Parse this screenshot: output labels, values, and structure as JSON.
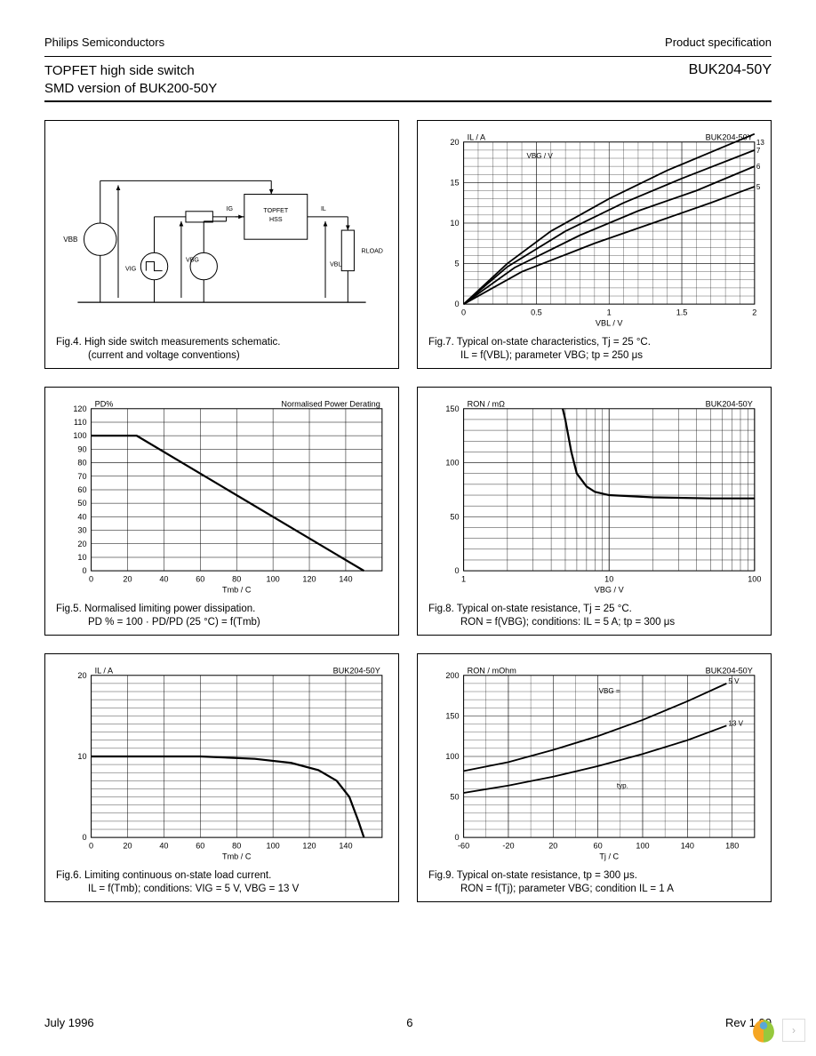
{
  "header": {
    "company": "Philips Semiconductors",
    "spec": "Product specification",
    "title1": "TOPFET high side switch",
    "title2": "SMD version of BUK200-50Y",
    "part": "BUK204-50Y"
  },
  "footer": {
    "date": "July 1996",
    "page": "6",
    "rev": "Rev 1.00"
  },
  "fig4": {
    "caption1": "Fig.4.   High side switch measurements schematic.",
    "caption2": "(current and voltage conventions)",
    "labels": {
      "vbb": "VBB",
      "vig": "VIG",
      "vbg": "VBG",
      "vbl": "VBL",
      "load": "RLOAD",
      "hs": "TOPFET HSS",
      "ig": "IG",
      "il": "IL"
    },
    "colors": {
      "line": "#000000"
    }
  },
  "fig5": {
    "caption1": "Fig.5.   Normalised limiting power dissipation.",
    "caption2": "PD % = 100 · PD/PD (25 °C) = f(Tmb)",
    "title_in": "Normalised Power Derating",
    "ylabel": "PD%",
    "xlabel": "Tmb / C",
    "xlim": [
      0,
      160
    ],
    "ylim": [
      0,
      120
    ],
    "xticks": [
      0,
      20,
      40,
      60,
      80,
      100,
      120,
      140
    ],
    "yticks": [
      0,
      10,
      20,
      30,
      40,
      50,
      60,
      70,
      80,
      90,
      100,
      110,
      120
    ],
    "data": [
      [
        0,
        100
      ],
      [
        25,
        100
      ],
      [
        150,
        0
      ]
    ],
    "grid_color": "#000000",
    "bg": "#ffffff",
    "line_color": "#000000",
    "line_width": 2.2
  },
  "fig6": {
    "caption1": "Fig.6.   Limiting continuous on-state load current.",
    "caption2": "IL = f(Tmb); conditions: VIG = 5 V, VBG = 13 V",
    "ylabel": "IL / A",
    "xlabel": "Tmb / C",
    "part": "BUK204-50Y",
    "xlim": [
      0,
      160
    ],
    "ylim": [
      0,
      20
    ],
    "xticks": [
      0,
      20,
      40,
      60,
      80,
      100,
      120,
      140
    ],
    "yticks": [
      0,
      10,
      20
    ],
    "data": [
      [
        0,
        10
      ],
      [
        60,
        10
      ],
      [
        90,
        9.7
      ],
      [
        110,
        9.2
      ],
      [
        125,
        8.3
      ],
      [
        135,
        7.0
      ],
      [
        142,
        5.0
      ],
      [
        147,
        2.0
      ],
      [
        150,
        0
      ]
    ],
    "grid_color": "#000000",
    "line_color": "#000000",
    "line_width": 2.2
  },
  "fig7": {
    "caption1": "Fig.7.   Typical on-state characteristics, Tj = 25 °C.",
    "caption2": "IL = f(VBL); parameter VBG; tp = 250 μs",
    "ylabel": "IL / A",
    "xlabel": "VBL / V",
    "part": "BUK204-50Y",
    "param_label": "VBG / V",
    "xlim": [
      0,
      2
    ],
    "ylim": [
      0,
      20
    ],
    "xticks": [
      0,
      0.5,
      1,
      1.5,
      2
    ],
    "yticks": [
      0,
      5,
      10,
      15,
      20
    ],
    "series": [
      {
        "label": "13",
        "pts": [
          [
            0,
            0
          ],
          [
            0.3,
            5
          ],
          [
            0.6,
            9
          ],
          [
            1.0,
            13
          ],
          [
            1.4,
            16.5
          ],
          [
            1.8,
            19.5
          ],
          [
            2.0,
            21
          ]
        ]
      },
      {
        "label": "7",
        "pts": [
          [
            0,
            0
          ],
          [
            0.3,
            4.6
          ],
          [
            0.7,
            9
          ],
          [
            1.1,
            12.5
          ],
          [
            1.5,
            15.5
          ],
          [
            2.0,
            19
          ]
        ]
      },
      {
        "label": "6",
        "pts": [
          [
            0,
            0
          ],
          [
            0.35,
            4.5
          ],
          [
            0.8,
            8.5
          ],
          [
            1.2,
            11.5
          ],
          [
            1.6,
            14
          ],
          [
            2.0,
            17
          ]
        ]
      },
      {
        "label": "5",
        "pts": [
          [
            0,
            0
          ],
          [
            0.4,
            4
          ],
          [
            0.9,
            7.5
          ],
          [
            1.3,
            10
          ],
          [
            1.7,
            12.5
          ],
          [
            2.0,
            14.5
          ]
        ]
      }
    ],
    "grid_color": "#000000",
    "line_color": "#000000",
    "line_width": 1.8
  },
  "fig8": {
    "caption1": "Fig.8.   Typical on-state resistance, Tj = 25 °C.",
    "caption2": "RON = f(VBG); conditions: IL = 5 A; tp = 300 μs",
    "ylabel": "RON / mΩ",
    "xlabel": "VBG / V",
    "part": "BUK204-50Y",
    "xlim": [
      1,
      100
    ],
    "ylim": [
      0,
      150
    ],
    "yticks": [
      0,
      50,
      100,
      150
    ],
    "xticks_log": [
      1,
      10,
      100
    ],
    "data": [
      [
        4.8,
        150
      ],
      [
        5,
        140
      ],
      [
        5.5,
        110
      ],
      [
        6,
        90
      ],
      [
        7,
        78
      ],
      [
        8,
        73
      ],
      [
        10,
        70
      ],
      [
        20,
        68
      ],
      [
        50,
        67
      ],
      [
        100,
        67
      ]
    ],
    "grid_color": "#000000",
    "line_color": "#000000",
    "line_width": 2.2,
    "xscale": "log"
  },
  "fig9": {
    "caption1": "Fig.9.   Typical on-state resistance, tp = 300 μs.",
    "caption2": "RON = f(Tj); parameter VBG; condition IL = 1 A",
    "ylabel": "RON / mOhm",
    "xlabel": "Tj / C",
    "part": "BUK204-50Y",
    "param_label": "VBG =",
    "xlim": [
      -60,
      200
    ],
    "ylim": [
      0,
      200
    ],
    "xticks": [
      -60,
      -20,
      20,
      60,
      100,
      140,
      180
    ],
    "yticks": [
      0,
      50,
      100,
      150,
      200
    ],
    "series": [
      {
        "label": "5 V",
        "pts": [
          [
            -60,
            82
          ],
          [
            -20,
            93
          ],
          [
            20,
            108
          ],
          [
            60,
            125
          ],
          [
            100,
            145
          ],
          [
            140,
            168
          ],
          [
            175,
            190
          ]
        ]
      },
      {
        "label": "13 V",
        "pts": [
          [
            -60,
            55
          ],
          [
            -20,
            64
          ],
          [
            20,
            75
          ],
          [
            60,
            88
          ],
          [
            100,
            103
          ],
          [
            140,
            120
          ],
          [
            175,
            138
          ]
        ]
      }
    ],
    "typ_label": "typ.",
    "grid_color": "#000000",
    "line_color": "#000000",
    "line_width": 1.8
  },
  "layout": {
    "chart_font": 9,
    "axis_font": 9
  }
}
